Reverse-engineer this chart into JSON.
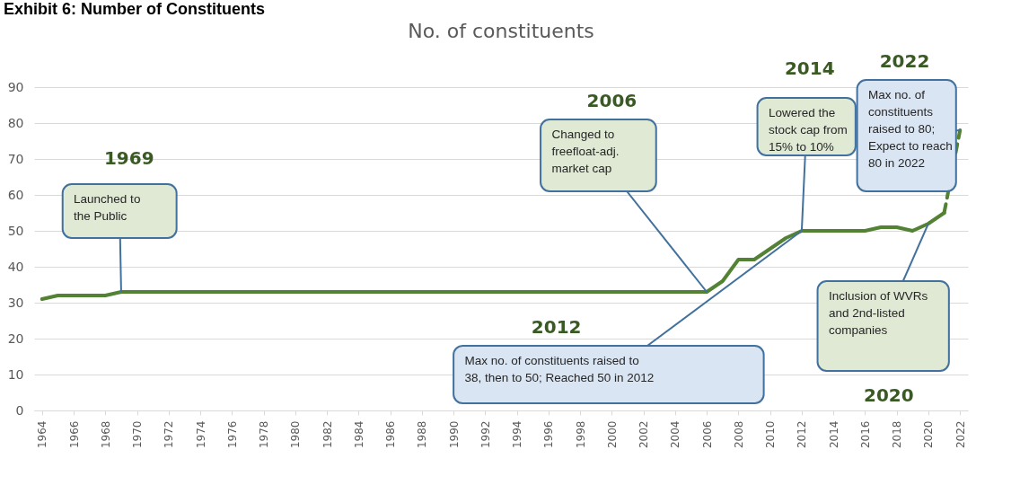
{
  "chart_data": {
    "type": "line",
    "title": "Exhibit 6: Number of Constituents",
    "subtitle": "No. of constituents",
    "ylim": [
      0,
      90
    ],
    "yticks": [
      0,
      10,
      20,
      30,
      40,
      50,
      60,
      70,
      80,
      90
    ],
    "xlim": [
      1963.5,
      2022.5
    ],
    "xticks": [
      1964,
      1966,
      1968,
      1970,
      1972,
      1974,
      1976,
      1978,
      1980,
      1982,
      1984,
      1986,
      1988,
      1990,
      1992,
      1994,
      1996,
      1998,
      2000,
      2002,
      2004,
      2006,
      2008,
      2010,
      2012,
      2014,
      2016,
      2018,
      2020,
      2022
    ],
    "grid": "y",
    "marker": "none",
    "series": [
      {
        "color": "#548235",
        "line_style": "solid",
        "x": [
          1964,
          1965,
          1966,
          1967,
          1968,
          1969,
          1970,
          1971,
          1972,
          1973,
          1974,
          1975,
          1976,
          1977,
          1978,
          1979,
          1980,
          1981,
          1982,
          1983,
          1984,
          1985,
          1986,
          1987,
          1988,
          1989,
          1990,
          1991,
          1992,
          1993,
          1994,
          1995,
          1996,
          1997,
          1998,
          1999,
          2000,
          2001,
          2002,
          2003,
          2004,
          2005,
          2006,
          2007,
          2008,
          2009,
          2010,
          2011,
          2012,
          2013,
          2014,
          2015,
          2016,
          2017,
          2018,
          2019,
          2020,
          2021
        ],
        "values": [
          31,
          32,
          32,
          32,
          32,
          33,
          33,
          33,
          33,
          33,
          33,
          33,
          33,
          33,
          33,
          33,
          33,
          33,
          33,
          33,
          33,
          33,
          33,
          33,
          33,
          33,
          33,
          33,
          33,
          33,
          33,
          33,
          33,
          33,
          33,
          33,
          33,
          33,
          33,
          33,
          33,
          33,
          33,
          36,
          42,
          42,
          45,
          48,
          50,
          50,
          50,
          50,
          50,
          51,
          51,
          50,
          52,
          55
        ]
      },
      {
        "color": "#548235",
        "line_style": "dashed",
        "x": [
          2021,
          2022
        ],
        "values": [
          55,
          78
        ]
      }
    ],
    "annotations": [
      {
        "text": "Launched to the Public",
        "x": 1969,
        "y": 33
      },
      {
        "text": "Changed to freefloat-adj. market cap",
        "x": 2006,
        "y": 33
      },
      {
        "text": "Lowered the stock cap from 15% to 10%",
        "x": 2012,
        "y": 50
      },
      {
        "text": "Max no. of constituents raised to 80; Expect to reach 80 in 2022",
        "x": 2022,
        "y": 78
      },
      {
        "text": "Max no. of constituents raised to 38, then to 50; Reached 50 in 2012",
        "x": 2012,
        "y": 50
      },
      {
        "text": "Inclusion of WVRs and 2nd-listed companies",
        "x": 2020,
        "y": 52
      },
      "1969",
      "2006",
      "2014",
      "2022",
      "2012",
      "2020"
    ]
  }
}
